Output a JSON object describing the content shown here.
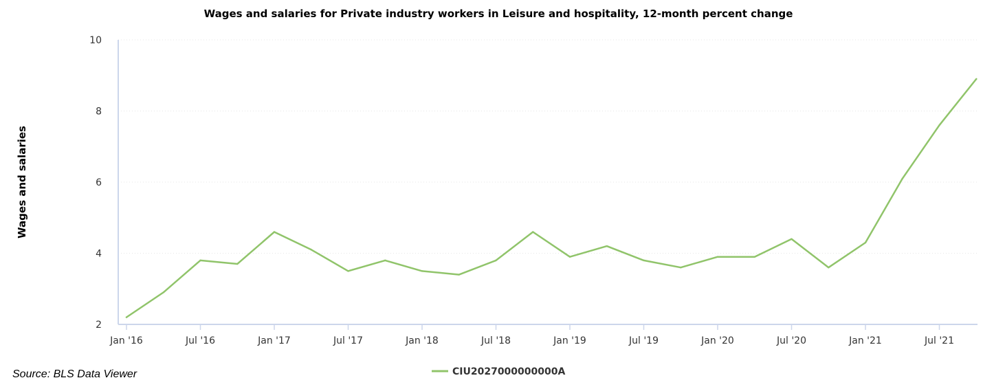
{
  "source_note": "Source: BLS Data Viewer",
  "colors": {
    "series": "#90c46a",
    "axis": "#ccd6eb",
    "grid": "#e6e6e6"
  },
  "chart_data": {
    "type": "line",
    "title": "Wages and salaries for Private industry workers in Leisure and hospitality, 12-month percent change",
    "xlabel": "",
    "ylabel": "Wages and salaries",
    "ylim": [
      2,
      10
    ],
    "yticks": [
      2,
      4,
      6,
      8,
      10
    ],
    "grid": true,
    "legend": "bottom-center",
    "xtick_labels": [
      "Jan '16",
      "Jul '16",
      "Jan '17",
      "Jul '17",
      "Jan '18",
      "Jul '18",
      "Jan '19",
      "Jul '19",
      "Jan '20",
      "Jul '20",
      "Jan '21",
      "Jul '21"
    ],
    "x": [
      "Jan 2016",
      "Apr 2016",
      "Jul 2016",
      "Oct 2016",
      "Jan 2017",
      "Apr 2017",
      "Jul 2017",
      "Oct 2017",
      "Jan 2018",
      "Apr 2018",
      "Jul 2018",
      "Oct 2018",
      "Jan 2019",
      "Apr 2019",
      "Jul 2019",
      "Oct 2019",
      "Jan 2020",
      "Apr 2020",
      "Jul 2020",
      "Oct 2020",
      "Jan 2021",
      "Apr 2021",
      "Jul 2021",
      "Oct 2021"
    ],
    "series": [
      {
        "name": "CIU2027000000000A",
        "values": [
          2.2,
          2.9,
          3.8,
          3.7,
          4.6,
          4.1,
          3.5,
          3.8,
          3.5,
          3.4,
          3.8,
          4.6,
          3.9,
          4.2,
          3.8,
          3.6,
          3.9,
          3.9,
          4.4,
          3.6,
          4.3,
          6.1,
          7.6,
          8.9
        ]
      }
    ]
  }
}
